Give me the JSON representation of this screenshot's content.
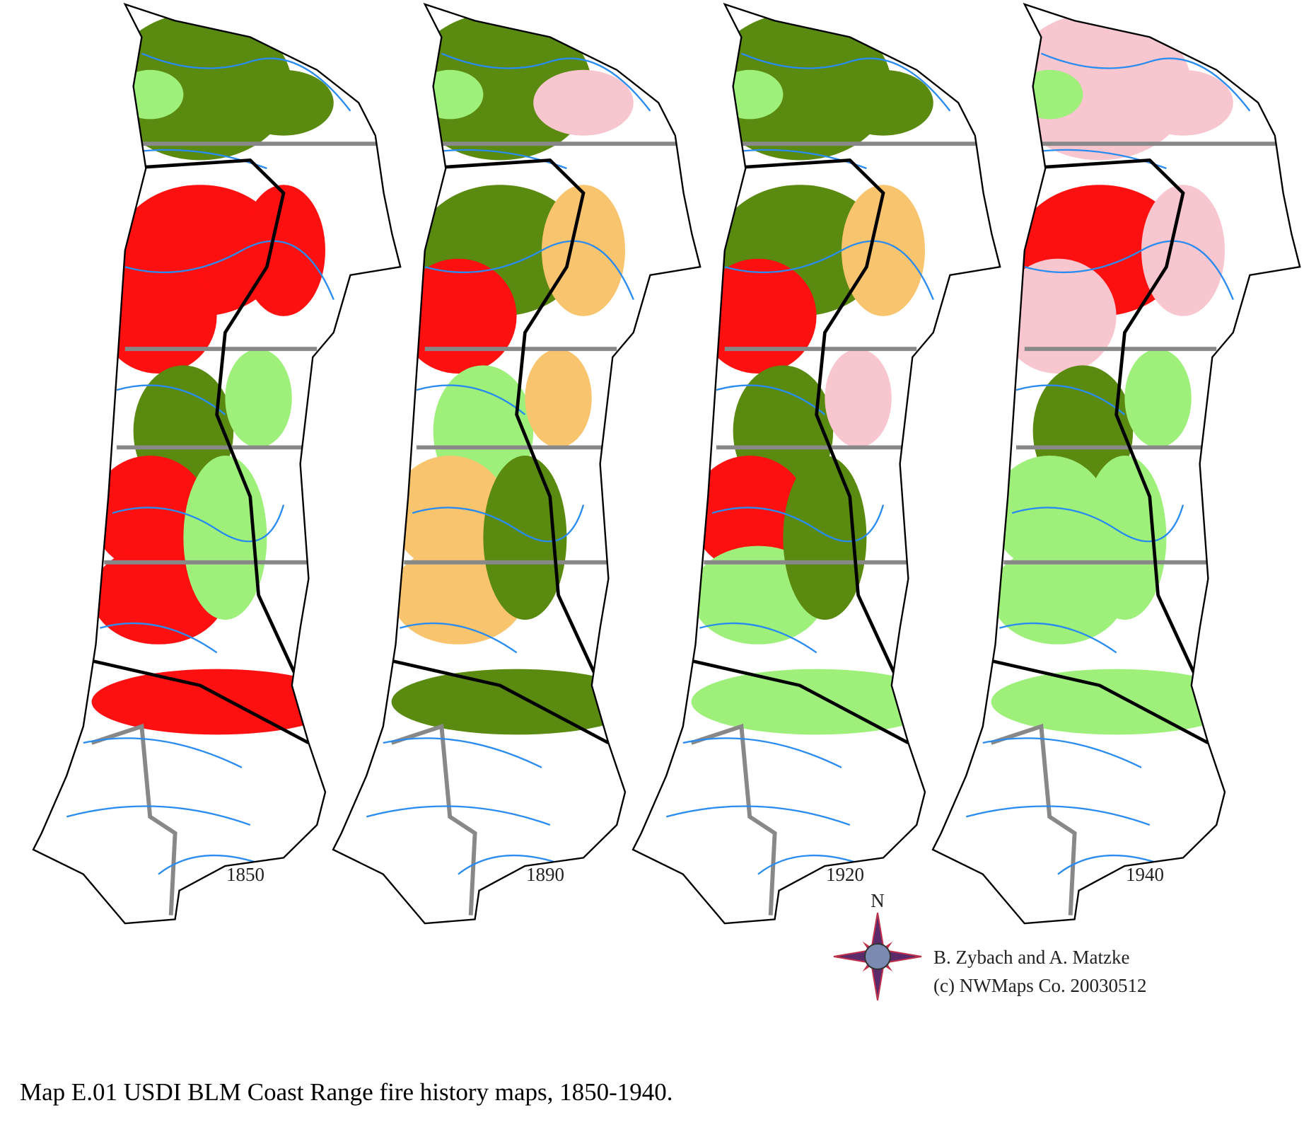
{
  "maps": [
    {
      "label": "1850"
    },
    {
      "label": "1890"
    },
    {
      "label": "1920"
    },
    {
      "label": "1940"
    }
  ],
  "compass": {
    "label": "N"
  },
  "credit": [
    "B. Zybach and A. Matzke",
    "(c) NWMaps Co. 20030512"
  ],
  "caption": "Map E.01  USDI BLM Coast Range fire history maps, 1850-1940."
}
